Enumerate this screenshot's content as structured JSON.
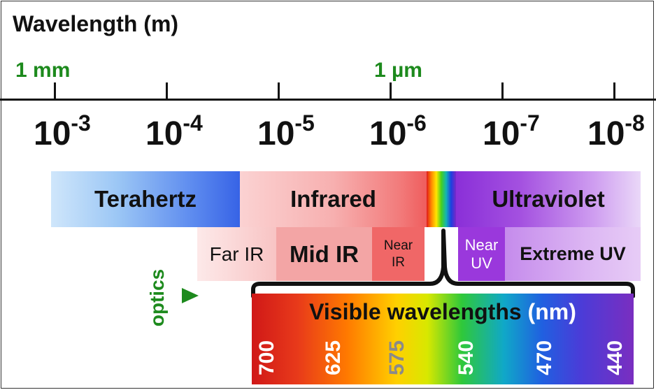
{
  "title": "Wavelength (m)",
  "scale_labels": {
    "mm": "1 mm",
    "um": "1 µm"
  },
  "powers": [
    {
      "base": "10",
      "exp": "-3"
    },
    {
      "base": "10",
      "exp": "-4"
    },
    {
      "base": "10",
      "exp": "-5"
    },
    {
      "base": "10",
      "exp": "-6"
    },
    {
      "base": "10",
      "exp": "-7"
    },
    {
      "base": "10",
      "exp": "-8"
    }
  ],
  "bands": {
    "terahertz": "Terahertz",
    "infrared": "Infrared",
    "ultraviolet": "Ultraviolet",
    "far_ir": "Far IR",
    "mid_ir": "Mid IR",
    "near_ir_1": "Near",
    "near_ir_2": "IR",
    "near_uv_1": "Near",
    "near_uv_2": "UV",
    "extreme_uv": "Extreme UV"
  },
  "optics_label": "optics",
  "visible": {
    "label": "Visible wavelengths",
    "unit": "(nm)",
    "ticks": [
      "700",
      "625",
      "575",
      "540",
      "470",
      "440"
    ]
  },
  "colors": {
    "scale_green": "#1d8a1d",
    "terahertz": "#3a68e8",
    "infrared": "#f26a6a",
    "ultraviolet": "#9a46e0"
  }
}
